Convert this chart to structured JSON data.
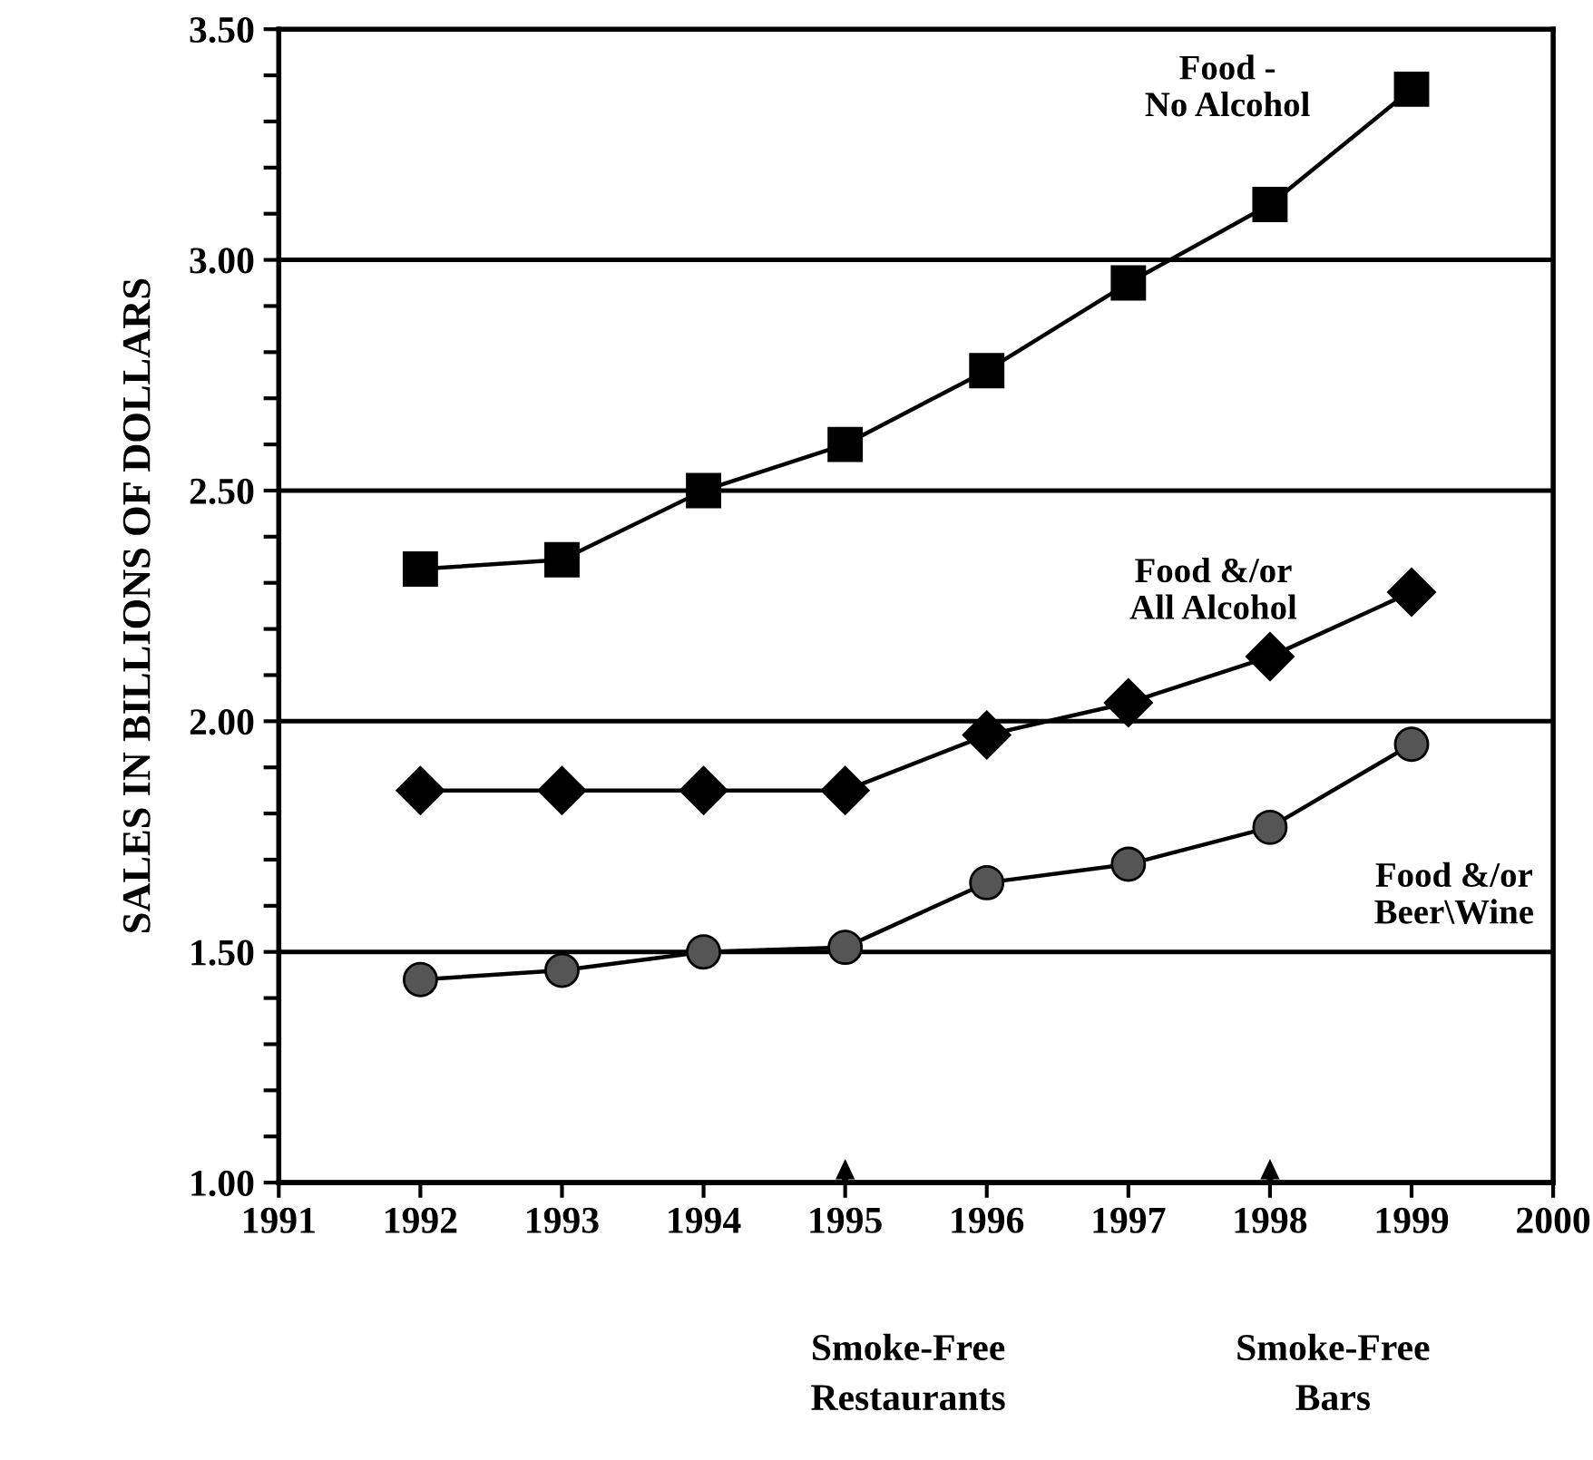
{
  "chart_data": {
    "type": "line",
    "ylabel": "SALES IN BILLIONS OF DOLLARS",
    "x": [
      1992,
      1993,
      1994,
      1995,
      1996,
      1997,
      1998,
      1999
    ],
    "series": [
      {
        "name": "Food -\nNo Alcohol",
        "color": "#000000",
        "marker": "square",
        "values": [
          2.33,
          2.35,
          2.5,
          2.6,
          2.76,
          2.95,
          3.12,
          3.37
        ]
      },
      {
        "name": "Food &/or\nAll Alcohol",
        "color": "#000000",
        "marker": "diamond",
        "values": [
          1.85,
          1.85,
          1.85,
          1.85,
          1.97,
          2.04,
          2.14,
          2.28
        ]
      },
      {
        "name": "Food &/or\nBeer\\Wine",
        "color": "#000000",
        "marker": "circle",
        "values": [
          1.44,
          1.46,
          1.5,
          1.51,
          1.65,
          1.69,
          1.77,
          1.95
        ]
      }
    ],
    "xlim": [
      1991,
      2000
    ],
    "xticks": [
      1991,
      1992,
      1993,
      1994,
      1995,
      1996,
      1997,
      1998,
      1999,
      2000
    ],
    "ylim": [
      1.0,
      3.5
    ],
    "yticks": [
      {
        "value": 1.0,
        "label": "1.00"
      },
      {
        "value": 1.1,
        "label": null
      },
      {
        "value": 1.2,
        "label": null
      },
      {
        "value": 1.3,
        "label": null
      },
      {
        "value": 1.4,
        "label": null
      },
      {
        "value": 1.5,
        "label": "1.50"
      },
      {
        "value": 1.6,
        "label": null
      },
      {
        "value": 1.7,
        "label": null
      },
      {
        "value": 1.8,
        "label": null
      },
      {
        "value": 1.9,
        "label": null
      },
      {
        "value": 2.0,
        "label": "2.00"
      },
      {
        "value": 2.1,
        "label": null
      },
      {
        "value": 2.2,
        "label": null
      },
      {
        "value": 2.3,
        "label": null
      },
      {
        "value": 2.4,
        "label": null
      },
      {
        "value": 2.5,
        "label": "2.50"
      },
      {
        "value": 2.6,
        "label": null
      },
      {
        "value": 2.7,
        "label": null
      },
      {
        "value": 2.8,
        "label": null
      },
      {
        "value": 2.9,
        "label": null
      },
      {
        "value": 3.0,
        "label": "3.00"
      },
      {
        "value": 3.1,
        "label": null
      },
      {
        "value": 3.2,
        "label": null
      },
      {
        "value": 3.3,
        "label": null
      },
      {
        "value": 3.4,
        "label": null
      },
      {
        "value": 3.5,
        "label": "3.50"
      }
    ],
    "grid": "y",
    "legend": false,
    "line_style": "solid",
    "annotations": [
      "Smoke-Free\nRestaurants",
      "Smoke-Free\nBars"
    ]
  }
}
